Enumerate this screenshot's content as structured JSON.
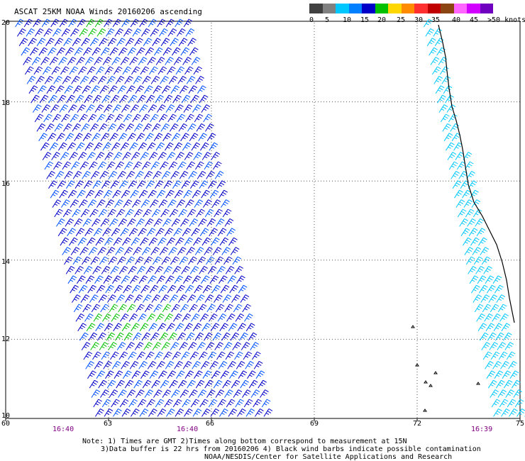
{
  "title": "ASCAT 25KM NOAA Winds 20160206 ascending",
  "legend": {
    "labels": [
      "0",
      "5",
      "10",
      "15",
      "20",
      "25",
      "30",
      "35",
      "40",
      "45",
      ">50 knots"
    ],
    "colors": [
      "#404040",
      "#808080",
      "#00c8ff",
      "#0080ff",
      "#0000c8",
      "#00c000",
      "#ffd700",
      "#ff8c00",
      "#ff3030",
      "#c00000",
      "#8b4513",
      "#ff66ff",
      "#d200ff",
      "#7000c0"
    ]
  },
  "lat_labels": [
    "20",
    "18",
    "16",
    "14",
    "12",
    "10"
  ],
  "lon_labels": [
    "60",
    "63",
    "66",
    "69",
    "72",
    "75"
  ],
  "time_labels": [
    "16:40",
    "16:40",
    "16:39"
  ],
  "notes": [
    "Note: 1) Times are GMT 2)Times along bottom correspond to measurement at 15N",
    "3)Data buffer is 22 hrs from 20160206 4) Black wind barbs indicate possible contamination",
    "NOAA/NESDIS/Center for Satellite Applications and Research"
  ],
  "barb_colors": {
    "swath": "#0000c8",
    "swath_light": "#0050ff",
    "green": "#00c000",
    "coastal": "#00c8ff"
  },
  "coastline_color": "#000000"
}
